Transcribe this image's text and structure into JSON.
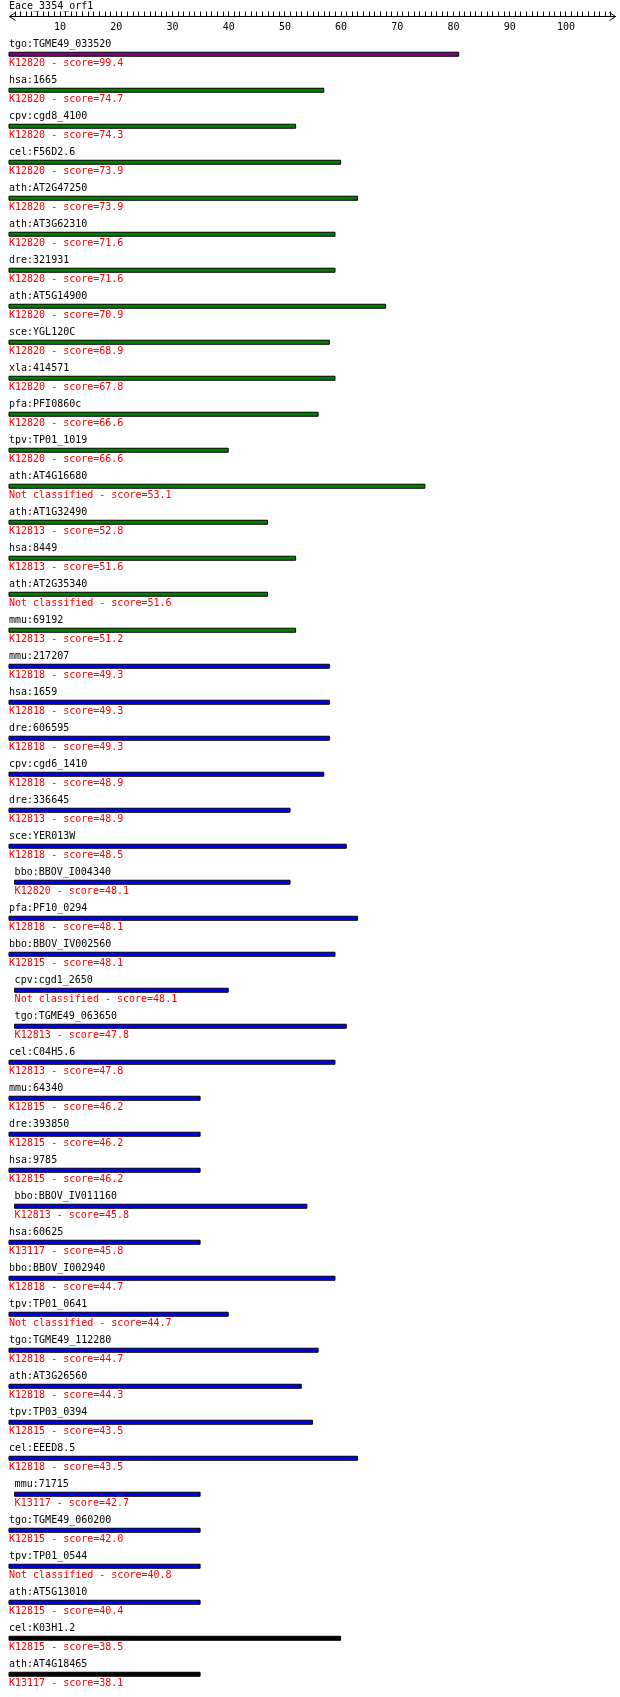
{
  "chart_data": {
    "type": "bar",
    "orientation": "horizontal",
    "title": "Eace_3354_orf1",
    "categories": [
      "tgo:TGME49_033520",
      "hsa:1665",
      "cpv:cgd8_4100",
      "cel:F56D2.6",
      "ath:AT2G47250",
      "ath:AT3G62310",
      "dre:321931",
      "ath:AT5G14900",
      "sce:YGL120C",
      "xla:414571",
      "pfa:PFI0860c",
      "tpv:TP01_1019",
      "ath:AT4G16680",
      "ath:AT1G32490",
      "hsa:8449",
      "ath:AT2G35340",
      "mmu:69192",
      "mmu:217207",
      "hsa:1659",
      "dre:606595",
      "cpv:cgd6_1410",
      "dre:336645",
      "sce:YER013W",
      "bbo:BBOV_I004340",
      "pfa:PF10_0294",
      "bbo:BBOV_IV002560",
      "cpv:cgd1_2650",
      "tgo:TGME49_063650",
      "cel:C04H5.6",
      "mmu:64340",
      "dre:393850",
      "hsa:9785",
      "bbo:BBOV_IV011160",
      "hsa:60625",
      "bbo:BBOV_I002940",
      "tpv:TP01_0641",
      "tgo:TGME49_112280",
      "ath:AT3G26560",
      "tpv:TP03_0394",
      "cel:EEED8.5",
      "mmu:71715",
      "tgo:TGME49_060200",
      "tpv:TP01_0544",
      "ath:AT5G13010",
      "cel:K03H1.2",
      "ath:AT4G18465"
    ],
    "base": [
      1,
      1,
      1,
      1,
      1,
      1,
      1,
      1,
      1,
      1,
      1,
      1,
      1,
      1,
      1,
      1,
      1,
      1,
      1,
      1,
      1,
      1,
      1,
      2,
      1,
      1,
      2,
      2,
      1,
      1,
      1,
      1,
      2,
      1,
      1,
      1,
      1,
      1,
      1,
      1,
      2,
      1,
      1,
      1,
      1,
      1
    ],
    "values": [
      80,
      56,
      51,
      59,
      62,
      58,
      58,
      67,
      57,
      58,
      55,
      39,
      74,
      46,
      51,
      46,
      51,
      57,
      57,
      57,
      56,
      50,
      60,
      49,
      62,
      58,
      38,
      59,
      58,
      34,
      34,
      34,
      52,
      34,
      58,
      39,
      55,
      52,
      54,
      62,
      33,
      34,
      34,
      34,
      59,
      34
    ],
    "colors": [
      "#800080",
      "#008000",
      "#008000",
      "#008000",
      "#008000",
      "#008000",
      "#008000",
      "#008000",
      "#008000",
      "#008000",
      "#008000",
      "#008000",
      "#008000",
      "#008000",
      "#008000",
      "#008000",
      "#008000",
      "#0000ff",
      "#0000ff",
      "#0000ff",
      "#0000ff",
      "#0000ff",
      "#0000ff",
      "#0000ff",
      "#0000ff",
      "#0000ff",
      "#0000ff",
      "#0000ff",
      "#0000ff",
      "#0000ff",
      "#0000ff",
      "#0000ff",
      "#0000ff",
      "#0000ff",
      "#0000ff",
      "#0000ff",
      "#0000ff",
      "#0000ff",
      "#0000ff",
      "#0000ff",
      "#0000ff",
      "#0000ff",
      "#0000ff",
      "#0000ff",
      "#000000",
      "#000000"
    ],
    "xlim": [
      1,
      109
    ],
    "xticks": [
      {
        "value": 2,
        "label": null
      },
      {
        "value": 3,
        "label": null
      },
      {
        "value": 4,
        "label": null
      },
      {
        "value": 5,
        "label": null
      },
      {
        "value": 6,
        "label": null
      },
      {
        "value": 7,
        "label": null
      },
      {
        "value": 8,
        "label": null
      },
      {
        "value": 9,
        "label": null
      },
      10,
      {
        "value": 11,
        "label": null
      },
      {
        "value": 12,
        "label": null
      },
      {
        "value": 13,
        "label": null
      },
      {
        "value": 14,
        "label": null
      },
      {
        "value": 15,
        "label": null
      },
      {
        "value": 16,
        "label": null
      },
      {
        "value": 17,
        "label": null
      },
      {
        "value": 18,
        "label": null
      },
      {
        "value": 19,
        "label": null
      },
      20,
      {
        "value": 21,
        "label": null
      },
      {
        "value": 22,
        "label": null
      },
      {
        "value": 23,
        "label": null
      },
      {
        "value": 24,
        "label": null
      },
      {
        "value": 25,
        "label": null
      },
      {
        "value": 26,
        "label": null
      },
      {
        "value": 27,
        "label": null
      },
      {
        "value": 28,
        "label": null
      },
      {
        "value": 29,
        "label": null
      },
      30,
      {
        "value": 31,
        "label": null
      },
      {
        "value": 32,
        "label": null
      },
      {
        "value": 33,
        "label": null
      },
      {
        "value": 34,
        "label": null
      },
      {
        "value": 35,
        "label": null
      },
      {
        "value": 36,
        "label": null
      },
      {
        "value": 37,
        "label": null
      },
      {
        "value": 38,
        "label": null
      },
      {
        "value": 39,
        "label": null
      },
      40,
      {
        "value": 41,
        "label": null
      },
      {
        "value": 42,
        "label": null
      },
      {
        "value": 43,
        "label": null
      },
      {
        "value": 44,
        "label": null
      },
      {
        "value": 45,
        "label": null
      },
      {
        "value": 46,
        "label": null
      },
      {
        "value": 47,
        "label": null
      },
      {
        "value": 48,
        "label": null
      },
      {
        "value": 49,
        "label": null
      },
      50,
      {
        "value": 51,
        "label": null
      },
      {
        "value": 52,
        "label": null
      },
      {
        "value": 53,
        "label": null
      },
      {
        "value": 54,
        "label": null
      },
      {
        "value": 55,
        "label": null
      },
      {
        "value": 56,
        "label": null
      },
      {
        "value": 57,
        "label": null
      },
      {
        "value": 58,
        "label": null
      },
      {
        "value": 59,
        "label": null
      },
      60,
      {
        "value": 61,
        "label": null
      },
      {
        "value": 62,
        "label": null
      },
      {
        "value": 63,
        "label": null
      },
      {
        "value": 64,
        "label": null
      },
      {
        "value": 65,
        "label": null
      },
      {
        "value": 66,
        "label": null
      },
      {
        "value": 67,
        "label": null
      },
      {
        "value": 68,
        "label": null
      },
      {
        "value": 69,
        "label": null
      },
      70,
      {
        "value": 71,
        "label": null
      },
      {
        "value": 72,
        "label": null
      },
      {
        "value": 73,
        "label": null
      },
      {
        "value": 74,
        "label": null
      },
      {
        "value": 75,
        "label": null
      },
      {
        "value": 76,
        "label": null
      },
      {
        "value": 77,
        "label": null
      },
      {
        "value": 78,
        "label": null
      },
      {
        "value": 79,
        "label": null
      },
      80,
      {
        "value": 81,
        "label": null
      },
      {
        "value": 82,
        "label": null
      },
      {
        "value": 83,
        "label": null
      },
      {
        "value": 84,
        "label": null
      },
      {
        "value": 85,
        "label": null
      },
      {
        "value": 86,
        "label": null
      },
      {
        "value": 87,
        "label": null
      },
      {
        "value": 88,
        "label": null
      },
      {
        "value": 89,
        "label": null
      },
      90,
      {
        "value": 91,
        "label": null
      },
      {
        "value": 92,
        "label": null
      },
      {
        "value": 93,
        "label": null
      },
      {
        "value": 94,
        "label": null
      },
      {
        "value": 95,
        "label": null
      },
      {
        "value": 96,
        "label": null
      },
      {
        "value": 97,
        "label": null
      },
      {
        "value": 98,
        "label": null
      },
      {
        "value": 99,
        "label": null
      },
      100,
      {
        "value": 101,
        "label": null
      },
      {
        "value": 102,
        "label": null
      },
      {
        "value": 103,
        "label": null
      },
      {
        "value": 104,
        "label": null
      },
      {
        "value": 105,
        "label": null
      },
      {
        "value": 106,
        "label": null
      },
      {
        "value": 107,
        "label": null
      },
      {
        "value": 108,
        "label": null
      }
    ],
    "annotations": [
      "K12820 - score=99.4",
      "K12820 - score=74.7",
      "K12820 - score=74.3",
      "K12820 - score=73.9",
      "K12820 - score=73.9",
      "K12820 - score=71.6",
      "K12820 - score=71.6",
      "K12820 - score=70.9",
      "K12820 - score=68.9",
      "K12820 - score=67.8",
      "K12820 - score=66.6",
      "K12820 - score=66.6",
      "Not classified - score=53.1",
      "K12813 - score=52.8",
      "K12813 - score=51.6",
      "Not classified - score=51.6",
      "K12813 - score=51.2",
      "K12818 - score=49.3",
      "K12818 - score=49.3",
      "K12818 - score=49.3",
      "K12818 - score=48.9",
      "K12813 - score=48.9",
      "K12818 - score=48.5",
      "K12820 - score=48.1",
      "K12818 - score=48.1",
      "K12815 - score=48.1",
      "Not classified - score=48.1",
      "K12813 - score=47.8",
      "K12813 - score=47.8",
      "K12815 - score=46.2",
      "K12815 - score=46.2",
      "K12815 - score=46.2",
      "K12813 - score=45.8",
      "K13117 - score=45.8",
      "K12818 - score=44.7",
      "Not classified - score=44.7",
      "K12818 - score=44.7",
      "K12818 - score=44.3",
      "K12815 - score=43.5",
      "K12818 - score=43.5",
      "K13117 - score=42.7",
      "K12815 - score=42.0",
      "Not classified - score=40.8",
      "K12815 - score=40.4",
      "K12815 - score=38.5",
      "K13117 - score=38.1"
    ]
  }
}
